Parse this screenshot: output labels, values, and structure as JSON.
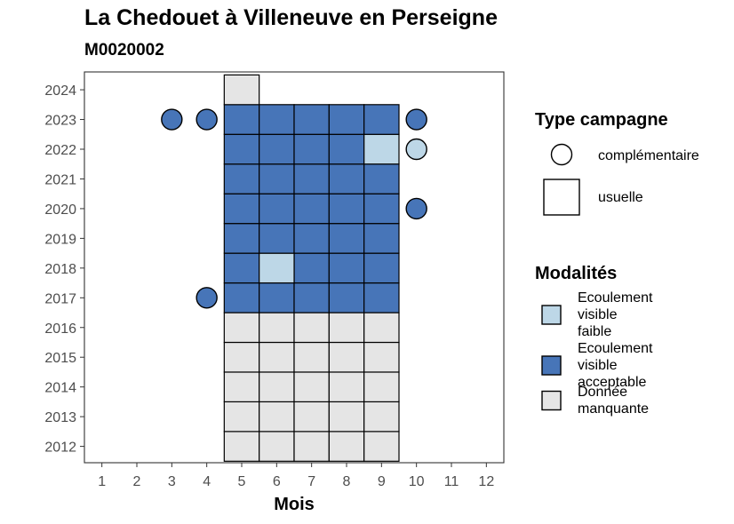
{
  "chart_data": {
    "type": "heatmap",
    "title": "La Chedouet à Villeneuve en Perseigne",
    "subtitle": "M0020002",
    "xlabel": "Mois",
    "ylabel": "",
    "x_ticks": [
      1,
      2,
      3,
      4,
      5,
      6,
      7,
      8,
      9,
      10,
      11,
      12
    ],
    "y_ticks": [
      2012,
      2013,
      2014,
      2015,
      2016,
      2017,
      2018,
      2019,
      2020,
      2021,
      2022,
      2023,
      2024
    ],
    "xlim": [
      0.5,
      12.5
    ],
    "ylim": [
      2011.45,
      2024.6
    ],
    "grid": false,
    "colors": {
      "Ecoulement visible faible": "#bdd7e7",
      "Ecoulement visible acceptable": "#4775b8",
      "Donnée manquante": "#e5e5e5"
    },
    "usuelle": [
      {
        "year": 2012,
        "months": [
          5,
          6,
          7,
          8,
          9
        ],
        "modalite": "Donnée manquante"
      },
      {
        "year": 2013,
        "months": [
          5,
          6,
          7,
          8,
          9
        ],
        "modalite": "Donnée manquante"
      },
      {
        "year": 2014,
        "months": [
          5,
          6,
          7,
          8,
          9
        ],
        "modalite": "Donnée manquante"
      },
      {
        "year": 2015,
        "months": [
          5,
          6,
          7,
          8,
          9
        ],
        "modalite": "Donnée manquante"
      },
      {
        "year": 2016,
        "months": [
          5,
          6,
          7,
          8,
          9
        ],
        "modalite": "Donnée manquante"
      },
      {
        "year": 2017,
        "months": [
          5,
          6,
          7,
          8,
          9
        ],
        "modalite": "Ecoulement visible acceptable"
      },
      {
        "year": 2018,
        "months": [
          5,
          7,
          8,
          9
        ],
        "modalite": "Ecoulement visible acceptable"
      },
      {
        "year": 2018,
        "months": [
          6
        ],
        "modalite": "Ecoulement visible faible"
      },
      {
        "year": 2019,
        "months": [
          5,
          6,
          7,
          8,
          9
        ],
        "modalite": "Ecoulement visible acceptable"
      },
      {
        "year": 2020,
        "months": [
          5,
          6,
          7,
          8,
          9
        ],
        "modalite": "Ecoulement visible acceptable"
      },
      {
        "year": 2021,
        "months": [
          5,
          6,
          7,
          8,
          9
        ],
        "modalite": "Ecoulement visible acceptable"
      },
      {
        "year": 2022,
        "months": [
          5,
          6,
          7,
          8
        ],
        "modalite": "Ecoulement visible acceptable"
      },
      {
        "year": 2022,
        "months": [
          9
        ],
        "modalite": "Ecoulement visible faible"
      },
      {
        "year": 2023,
        "months": [
          5,
          6,
          7,
          8,
          9
        ],
        "modalite": "Ecoulement visible acceptable"
      },
      {
        "year": 2024,
        "months": [
          5
        ],
        "modalite": "Donnée manquante"
      }
    ],
    "complementaire": [
      {
        "year": 2017,
        "month": 4,
        "modalite": "Ecoulement visible acceptable"
      },
      {
        "year": 2020,
        "month": 10,
        "modalite": "Ecoulement visible acceptable"
      },
      {
        "year": 2022,
        "month": 10,
        "modalite": "Ecoulement visible faible"
      },
      {
        "year": 2023,
        "month": 3,
        "modalite": "Ecoulement visible acceptable"
      },
      {
        "year": 2023,
        "month": 4,
        "modalite": "Ecoulement visible acceptable"
      },
      {
        "year": 2023,
        "month": 10,
        "modalite": "Ecoulement visible acceptable"
      }
    ],
    "legend": {
      "position": "right",
      "type_campagne": {
        "title": "Type campagne",
        "items": [
          "complémentaire",
          "usuelle"
        ]
      },
      "modalites": {
        "title": "Modalités",
        "items": [
          {
            "lines": [
              "Ecoulement",
              "visible",
              "faible"
            ],
            "color": "#bdd7e7"
          },
          {
            "lines": [
              "Ecoulement",
              "visible",
              "acceptable"
            ],
            "color": "#4775b8"
          },
          {
            "lines": [
              "Donnée",
              "manquante"
            ],
            "color": "#e5e5e5"
          }
        ]
      }
    }
  }
}
